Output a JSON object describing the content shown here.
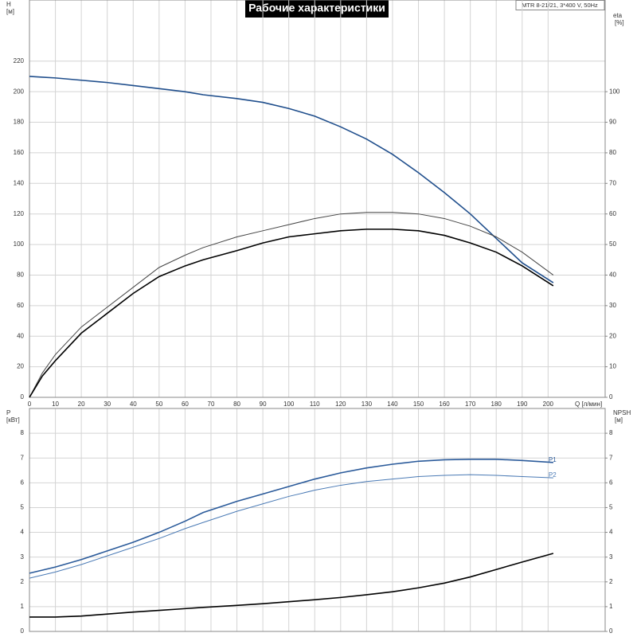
{
  "chart_data": [
    {
      "type": "line",
      "title": "Рабочие характеристики",
      "annotation": "MTR 8-21/21, 3*400 V, 50Hz",
      "ylabel": "H",
      "ylabel_unit": "[м]",
      "y2label": "eta",
      "y2label_unit": "[%]",
      "xlabel": "Q [л/мин]",
      "x": [
        0,
        5,
        10,
        20,
        30,
        40,
        50,
        60,
        67,
        80,
        90,
        100,
        110,
        120,
        130,
        140,
        150,
        160,
        170,
        180,
        190,
        202
      ],
      "xlim": [
        0,
        222
      ],
      "xticks": [
        0,
        10,
        20,
        30,
        40,
        50,
        60,
        70,
        80,
        90,
        100,
        110,
        120,
        130,
        140,
        150,
        160,
        170,
        180,
        190,
        200
      ],
      "ylim": [
        0,
        260
      ],
      "yticks": [
        0,
        20,
        40,
        60,
        80,
        100,
        120,
        140,
        160,
        180,
        200,
        220
      ],
      "y2lim": [
        0,
        130
      ],
      "y2ticks": [
        0,
        10,
        20,
        30,
        40,
        50,
        60,
        70,
        80,
        90,
        100
      ],
      "grid": true,
      "series": [
        {
          "color": "#1f4e8c",
          "width": 1.6,
          "values": [
            210,
            209.5,
            209,
            207.5,
            206,
            204,
            202,
            200,
            198,
            195.5,
            193,
            189,
            184,
            177,
            169,
            159,
            147,
            134,
            120,
            104,
            88,
            75
          ]
        },
        {
          "color": "#444444",
          "width": 1,
          "axis": "y2",
          "values": [
            0,
            8,
            14,
            23,
            29.5,
            36,
            42.5,
            46.5,
            49,
            52.5,
            54.5,
            56.5,
            58.5,
            60,
            60.5,
            60.5,
            60,
            58.5,
            56,
            52.5,
            47.5,
            40
          ]
        },
        {
          "color": "#000000",
          "width": 1.6,
          "axis": "y2",
          "values": [
            0,
            7,
            12,
            21,
            27.5,
            34,
            39.5,
            43,
            45,
            48,
            50.5,
            52.5,
            53.5,
            54.5,
            55,
            55,
            54.5,
            53,
            50.5,
            47.5,
            43,
            36.5
          ]
        }
      ]
    },
    {
      "type": "line",
      "ylabel": "P",
      "ylabel_unit": "[кВт]",
      "y2label": "NPSH",
      "y2label_unit": "[м]",
      "x": [
        0,
        10,
        20,
        30,
        40,
        50,
        60,
        67,
        80,
        90,
        100,
        110,
        120,
        130,
        140,
        150,
        160,
        170,
        180,
        190,
        202
      ],
      "xlim": [
        0,
        222
      ],
      "xticks": [
        0,
        10,
        20,
        30,
        40,
        50,
        60,
        70,
        80,
        90,
        100,
        110,
        120,
        130,
        140,
        150,
        160,
        170,
        180,
        190,
        200
      ],
      "ylim": [
        0,
        9
      ],
      "yticks": [
        0,
        1,
        2,
        3,
        4,
        5,
        6,
        7,
        8
      ],
      "y2lim": [
        0,
        9
      ],
      "y2ticks": [
        0,
        1,
        2,
        3,
        4,
        5,
        6,
        7,
        8
      ],
      "grid": true,
      "series": [
        {
          "name": "P1",
          "color": "#2a5a9a",
          "width": 1.6,
          "values": [
            2.35,
            2.6,
            2.9,
            3.25,
            3.6,
            4.0,
            4.45,
            4.8,
            5.25,
            5.55,
            5.85,
            6.15,
            6.4,
            6.6,
            6.75,
            6.87,
            6.93,
            6.95,
            6.95,
            6.9,
            6.82
          ]
        },
        {
          "name": "P2",
          "color": "#4a7ab5",
          "width": 1,
          "values": [
            2.15,
            2.4,
            2.7,
            3.05,
            3.4,
            3.75,
            4.15,
            4.4,
            4.85,
            5.15,
            5.45,
            5.7,
            5.9,
            6.05,
            6.15,
            6.25,
            6.3,
            6.33,
            6.3,
            6.25,
            6.2
          ]
        },
        {
          "color": "#000000",
          "width": 1.6,
          "axis": "y2",
          "values": [
            0.58,
            0.58,
            0.62,
            0.7,
            0.78,
            0.85,
            0.92,
            0.97,
            1.05,
            1.12,
            1.2,
            1.28,
            1.37,
            1.48,
            1.6,
            1.76,
            1.95,
            2.2,
            2.5,
            2.8,
            3.15
          ]
        }
      ]
    }
  ]
}
